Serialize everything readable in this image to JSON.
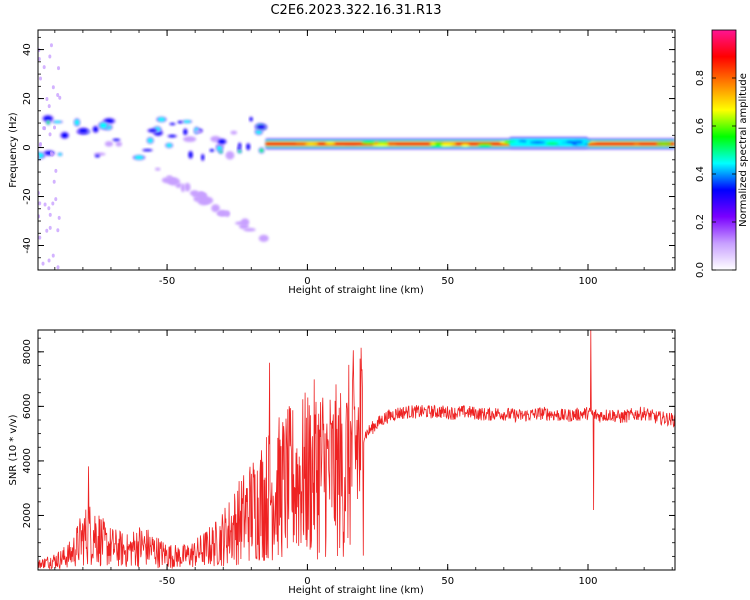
{
  "title": "C2E6.2023.322.16.31.R13",
  "chart_data": [
    {
      "type": "heatmap",
      "xlabel": "Height of straight line (km)",
      "ylabel": "Frequency (Hz)",
      "xlim": [
        -96,
        131
      ],
      "ylim": [
        -50,
        48
      ],
      "x_ticks": [
        -50,
        0,
        50,
        100
      ],
      "y_ticks": [
        -40,
        -20,
        0,
        20,
        40
      ],
      "colorbar": {
        "label": "Normalized spectral amplitude",
        "ticks": [
          0.0,
          0.2,
          0.4,
          0.6,
          0.8
        ],
        "range": [
          0,
          1
        ],
        "stops": [
          "#ffffff",
          "#c8a0ff",
          "#7a00ff",
          "#0000ff",
          "#00ffff",
          "#00ff00",
          "#ffff00",
          "#ff8000",
          "#ff0000",
          "#ff1493"
        ]
      },
      "features": [
        {
          "name": "main band",
          "x_range": [
            -15,
            131
          ],
          "freq_hz": 1.5,
          "amplitude": 0.95
        },
        {
          "name": "scattered low-height energy",
          "x_range": [
            -96,
            -15
          ],
          "freq_hz_range": [
            -5,
            12
          ],
          "amplitude": 0.6
        },
        {
          "name": "descending branch",
          "x_range": [
            -55,
            -14
          ],
          "freq_hz_range": [
            -37,
            -9
          ],
          "amplitude": 0.2
        },
        {
          "name": "sidelobe cluster",
          "x_range": [
            72,
            100
          ],
          "freq_hz": 2,
          "amplitude": 0.55
        }
      ]
    },
    {
      "type": "line",
      "xlabel": "Height of straight line (km)",
      "ylabel": "SNR (10 * v/v)",
      "xlim": [
        -96,
        131
      ],
      "ylim": [
        0,
        8800
      ],
      "x_ticks": [
        -50,
        0,
        50,
        100
      ],
      "y_ticks": [
        2000,
        4000,
        6000,
        8000
      ],
      "color": "#ee2222",
      "series": [
        {
          "x": [
            -96,
            -92,
            -88,
            -84,
            -80,
            -76,
            -72,
            -68,
            -64,
            -60,
            -56,
            -52,
            -48,
            -44,
            -40,
            -36,
            -32,
            -28,
            -24,
            -20,
            -16,
            -12,
            -8,
            -4,
            0,
            4,
            8,
            12,
            16,
            20,
            24,
            28,
            32,
            36,
            40,
            44,
            48,
            52,
            56,
            60,
            64,
            68,
            72,
            76,
            80,
            84,
            88,
            92,
            96,
            100,
            104,
            108,
            112,
            116,
            120,
            124,
            128,
            131
          ],
          "y": [
            200,
            300,
            400,
            600,
            1200,
            1400,
            900,
            800,
            700,
            900,
            800,
            600,
            500,
            500,
            600,
            800,
            1000,
            1400,
            1800,
            2200,
            2600,
            2900,
            3100,
            3300,
            3500,
            3800,
            3600,
            3600,
            4200,
            4900,
            5300,
            5600,
            5750,
            5800,
            5800,
            5800,
            5800,
            5750,
            5800,
            5750,
            5700,
            5750,
            5700,
            5650,
            5700,
            5750,
            5700,
            5650,
            5700,
            5750,
            5650,
            5700,
            5600,
            5700,
            5750,
            5600,
            5550,
            5500
          ]
        }
      ],
      "annotations": [
        {
          "x": -78,
          "y": 3800
        },
        {
          "x": -13.5,
          "y": 7600
        },
        {
          "x": 101,
          "y": 8800
        },
        {
          "x": 102,
          "y": 2200
        },
        {
          "x": 13,
          "y": 1400
        }
      ]
    }
  ]
}
